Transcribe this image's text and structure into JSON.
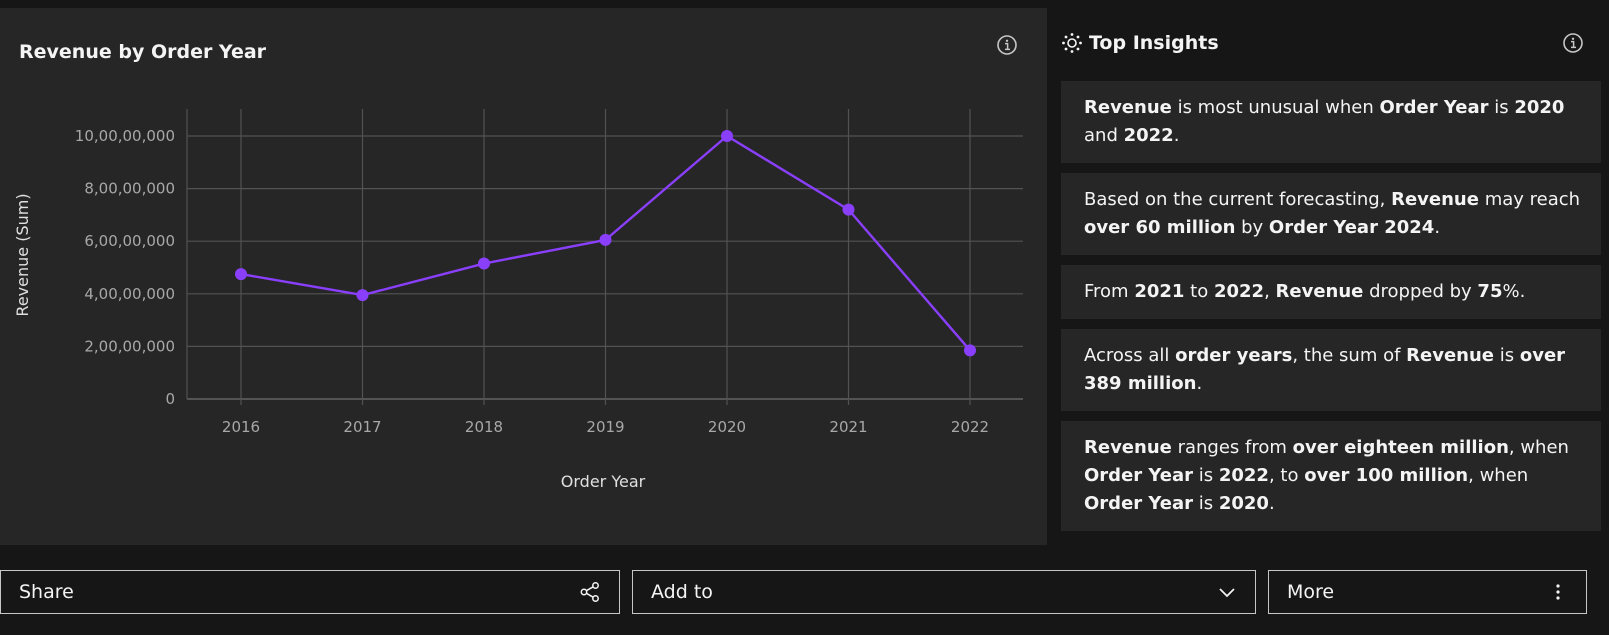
{
  "chart_panel": {
    "title": "Revenue by Order Year",
    "info_icon": "info-icon"
  },
  "chart_data": {
    "type": "line",
    "title": "Revenue by Order Year",
    "xlabel": "Order Year",
    "ylabel": "Revenue (Sum)",
    "categories": [
      "2016",
      "2017",
      "2018",
      "2019",
      "2020",
      "2021",
      "2022"
    ],
    "series": [
      {
        "name": "Revenue",
        "values": [
          47500000,
          39500000,
          51500000,
          60500000,
          100000000,
          72000000,
          18500000
        ]
      }
    ],
    "y_ticks": [
      0,
      20000000,
      40000000,
      60000000,
      80000000,
      100000000
    ],
    "y_tick_labels": [
      "0",
      "2,00,00,000",
      "4,00,00,000",
      "6,00,00,000",
      "8,00,00,000",
      "10,00,00,000"
    ],
    "ylim": [
      0,
      110000000
    ],
    "grid": true,
    "line_color": "#8a3ffc"
  },
  "insights": {
    "title": "Top Insights",
    "icon": "insights-icon",
    "cards": [
      {
        "segments": [
          {
            "text": "Revenue",
            "bold": true
          },
          {
            "text": " is most unusual when ",
            "bold": false
          },
          {
            "text": "Order Year",
            "bold": true
          },
          {
            "text": " is ",
            "bold": false
          },
          {
            "text": "2020",
            "bold": true
          },
          {
            "text": " and ",
            "bold": false
          },
          {
            "text": "2022",
            "bold": true
          },
          {
            "text": ".",
            "bold": false
          }
        ]
      },
      {
        "segments": [
          {
            "text": "Based on the current forecasting, ",
            "bold": false
          },
          {
            "text": "Revenue",
            "bold": true
          },
          {
            "text": " may reach ",
            "bold": false
          },
          {
            "text": "over 60 million",
            "bold": true
          },
          {
            "text": " by ",
            "bold": false
          },
          {
            "text": "Order Year 2024",
            "bold": true
          },
          {
            "text": ".",
            "bold": false
          }
        ]
      },
      {
        "segments": [
          {
            "text": "From ",
            "bold": false
          },
          {
            "text": "2021",
            "bold": true
          },
          {
            "text": " to ",
            "bold": false
          },
          {
            "text": "2022",
            "bold": true
          },
          {
            "text": ", ",
            "bold": false
          },
          {
            "text": "Revenue",
            "bold": true
          },
          {
            "text": " dropped by ",
            "bold": false
          },
          {
            "text": "75",
            "bold": true
          },
          {
            "text": "%.",
            "bold": false
          }
        ]
      },
      {
        "segments": [
          {
            "text": "Across all ",
            "bold": false
          },
          {
            "text": "order years",
            "bold": true
          },
          {
            "text": ", the sum of ",
            "bold": false
          },
          {
            "text": "Revenue",
            "bold": true
          },
          {
            "text": " is ",
            "bold": false
          },
          {
            "text": "over 389 million",
            "bold": true
          },
          {
            "text": ".",
            "bold": false
          }
        ]
      },
      {
        "segments": [
          {
            "text": "Revenue",
            "bold": true
          },
          {
            "text": " ranges from ",
            "bold": false
          },
          {
            "text": "over eighteen million",
            "bold": true
          },
          {
            "text": ", when ",
            "bold": false
          },
          {
            "text": "Order Year",
            "bold": true
          },
          {
            "text": " is ",
            "bold": false
          },
          {
            "text": "2022",
            "bold": true
          },
          {
            "text": ", to ",
            "bold": false
          },
          {
            "text": "over 100 million",
            "bold": true
          },
          {
            "text": ", when ",
            "bold": false
          },
          {
            "text": "Order Year",
            "bold": true
          },
          {
            "text": " is ",
            "bold": false
          },
          {
            "text": "2020",
            "bold": true
          },
          {
            "text": ".",
            "bold": false
          }
        ]
      }
    ]
  },
  "actions": {
    "share_label": "Share",
    "share_icon": "share-icon",
    "add_to_label": "Add to",
    "add_to_icon": "chevron-down-icon",
    "more_label": "More",
    "more_icon": "overflow-menu-icon"
  }
}
